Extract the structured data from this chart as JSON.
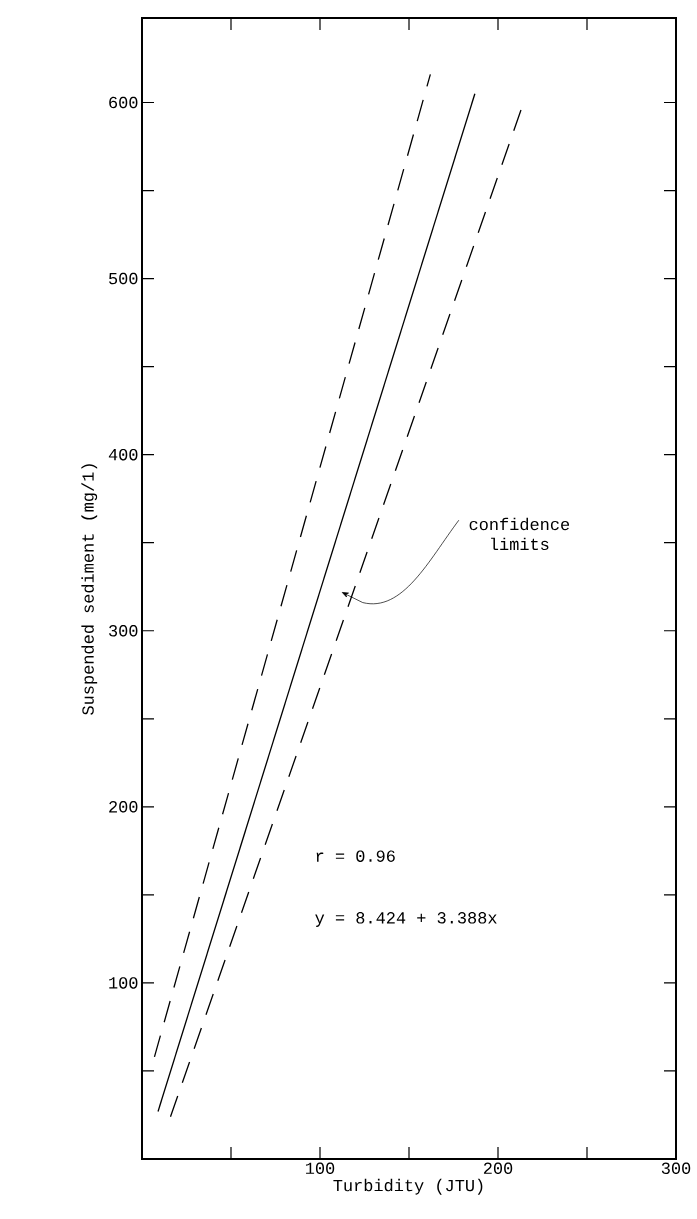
{
  "chart_data": {
    "type": "line",
    "xlabel": "Turbidity (JTU)",
    "ylabel": "Suspended sediment (mg/1)",
    "xlim": [
      0,
      300
    ],
    "ylim": [
      0,
      648
    ],
    "xticks": [
      {
        "value": 50,
        "label": null
      },
      100,
      {
        "value": 150,
        "label": null
      },
      200,
      {
        "value": 250,
        "label": null
      },
      300
    ],
    "yticks": [
      {
        "value": 50,
        "label": null
      },
      100,
      {
        "value": 150,
        "label": null
      },
      200,
      {
        "value": 250,
        "label": null
      },
      300,
      {
        "value": 350,
        "label": null
      },
      400,
      {
        "value": 450,
        "label": null
      },
      500,
      {
        "value": 550,
        "label": null
      },
      600
    ],
    "series": [
      {
        "color": "#000000",
        "line_style": "solid",
        "x": [
          9,
          187
        ],
        "values": [
          27,
          605
        ]
      },
      {
        "color": "#000000",
        "line_style": "dashed",
        "x": [
          7,
          162
        ],
        "values": [
          58,
          616
        ]
      },
      {
        "color": "#000000",
        "line_style": "dashed",
        "x": [
          16,
          213
        ],
        "values": [
          24,
          596
        ]
      }
    ],
    "annotations": [
      "confidence limits",
      "r = 0.96",
      "y = 8.424 + 3.388x"
    ]
  }
}
